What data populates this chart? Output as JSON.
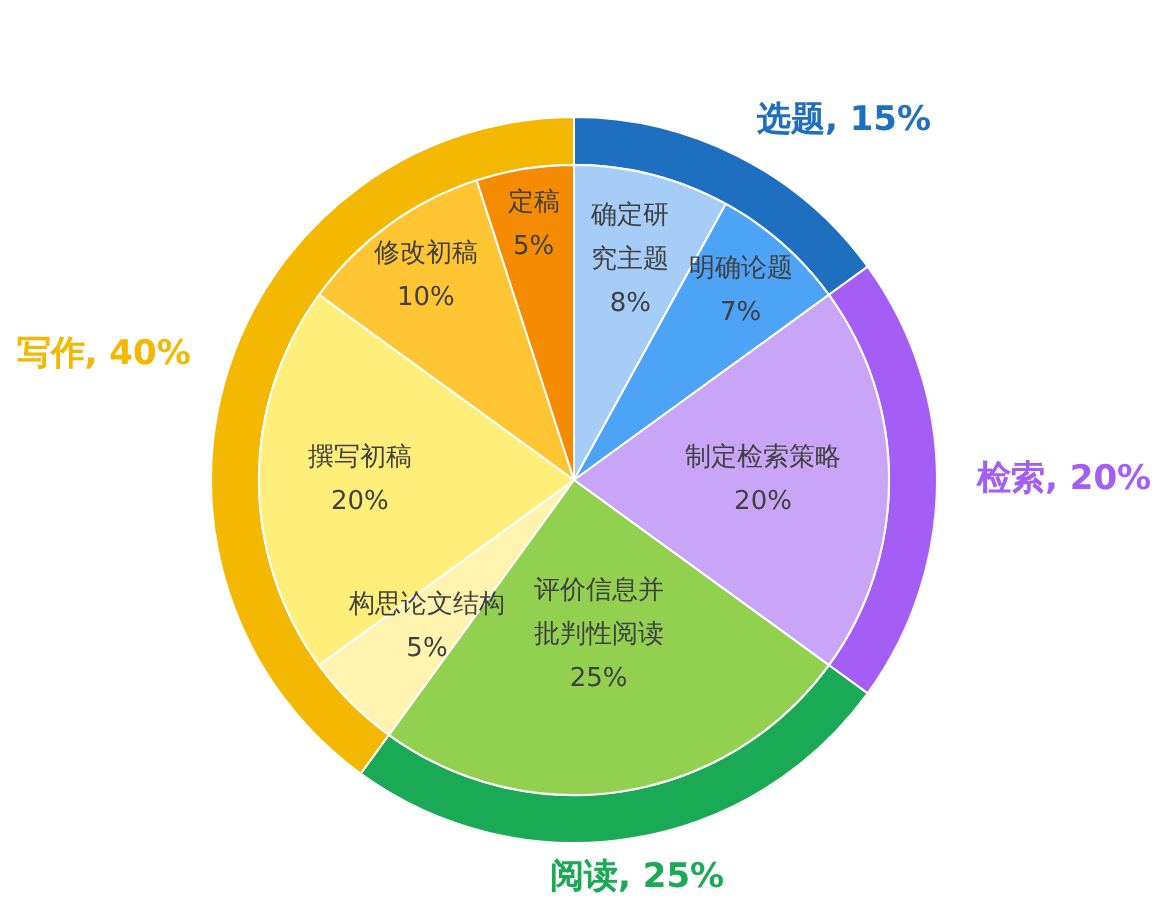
{
  "chart_data": [
    {
      "type": "donut",
      "categories": [
        "选题",
        "检索",
        "阅读",
        "写作"
      ],
      "values": [
        15,
        20,
        25,
        40
      ],
      "value_labels": [
        "15%",
        "20%",
        "25%",
        "40%"
      ],
      "colors": [
        "#1f6fc0",
        "#a45ef5",
        "#1aaa55",
        "#f5b800"
      ]
    },
    {
      "type": "pie",
      "categories": [
        "确定研究主题",
        "明确论题",
        "制定检索策略",
        "评价信息并批判性阅读",
        "构思论文结构",
        "撰写初稿",
        "修改初稿",
        "定稿"
      ],
      "values": [
        8,
        7,
        20,
        25,
        5,
        20,
        10,
        5
      ],
      "value_labels": [
        "8%",
        "7%",
        "20%",
        "25%",
        "5%",
        "20%",
        "10%",
        "5%"
      ],
      "colors": [
        "#a6cdf7",
        "#4da3f5",
        "#c9a5f8",
        "#92d050",
        "#fff3b0",
        "#ffef7a",
        "#ffc533",
        "#f58b00"
      ]
    }
  ]
}
